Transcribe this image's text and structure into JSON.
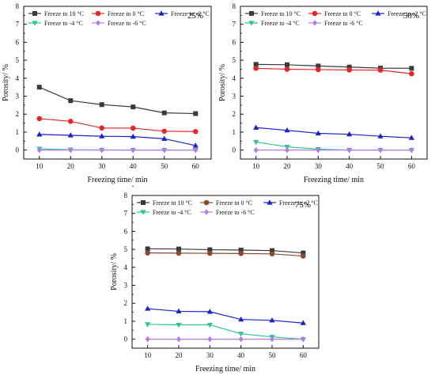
{
  "chart_data": [
    {
      "type": "line",
      "annotation": "25%",
      "xlabel": "Freezing time/ min",
      "ylabel": "Porosity/ %",
      "x": [
        10,
        20,
        30,
        40,
        50,
        60
      ],
      "xticks": [
        "10",
        "20",
        "30",
        "40",
        "50",
        "60"
      ],
      "yticks": [
        "0",
        "1",
        "2",
        "3",
        "4",
        "5",
        "6",
        "7",
        "8"
      ],
      "xlim": [
        5,
        65
      ],
      "ylim": [
        -0.5,
        8
      ],
      "series": [
        {
          "name": "Freeze to 10 °C",
          "marker": "square",
          "color": "#3a3a3a",
          "values": [
            3.5,
            2.75,
            2.53,
            2.4,
            2.07,
            2.03
          ]
        },
        {
          "name": "Freeze to 0 °C",
          "marker": "circle",
          "color": "#e8262a",
          "values": [
            1.75,
            1.6,
            1.23,
            1.22,
            1.05,
            1.03
          ]
        },
        {
          "name": "Freeze to -2 °C",
          "marker": "triangle-up",
          "color": "#1a22c8",
          "values": [
            0.87,
            0.82,
            0.77,
            0.75,
            0.63,
            0.25
          ]
        },
        {
          "name": "Freeze to -4 °C",
          "marker": "triangle-down",
          "color": "#2ec68c",
          "values": [
            0.07,
            0.02,
            0.01,
            0.0,
            0.0,
            0.0
          ]
        },
        {
          "name": "Freeze to -6 °C",
          "marker": "diamond",
          "color": "#b67be8",
          "values": [
            0.0,
            0.0,
            0.0,
            0.0,
            0.0,
            0.0
          ]
        }
      ]
    },
    {
      "type": "line",
      "annotation": "50%",
      "xlabel": "Freezing time/ min",
      "ylabel": "Porosity/ %",
      "x": [
        10,
        20,
        30,
        40,
        50,
        60
      ],
      "xticks": [
        "10",
        "20",
        "30",
        "40",
        "50",
        "60"
      ],
      "yticks": [
        "0",
        "1",
        "2",
        "3",
        "4",
        "5",
        "6",
        "7",
        "8"
      ],
      "xlim": [
        5,
        65
      ],
      "ylim": [
        -0.5,
        8
      ],
      "series": [
        {
          "name": "Freeze to 10 °C",
          "marker": "square",
          "color": "#3a3a3a",
          "values": [
            4.77,
            4.75,
            4.68,
            4.62,
            4.56,
            4.55
          ]
        },
        {
          "name": "Freeze to 0 °C",
          "marker": "circle",
          "color": "#e8262a",
          "values": [
            4.55,
            4.5,
            4.48,
            4.46,
            4.45,
            4.25
          ]
        },
        {
          "name": "Freeze to -2 °C",
          "marker": "triangle-up",
          "color": "#1a22c8",
          "values": [
            1.25,
            1.1,
            0.93,
            0.88,
            0.77,
            0.68
          ]
        },
        {
          "name": "Freeze to -4 °C",
          "marker": "triangle-down",
          "color": "#2ec68c",
          "values": [
            0.45,
            0.18,
            0.05,
            0.0,
            0.0,
            0.0
          ]
        },
        {
          "name": "Freeze to -6 °C",
          "marker": "diamond",
          "color": "#b67be8",
          "values": [
            0.0,
            0.0,
            0.0,
            0.0,
            0.0,
            0.0
          ]
        }
      ]
    },
    {
      "type": "line",
      "annotation": "75%",
      "xlabel": "Freezing time/ min",
      "ylabel": "Porosity/ %",
      "x": [
        10,
        20,
        30,
        40,
        50,
        60
      ],
      "xticks": [
        "10",
        "20",
        "30",
        "40",
        "50",
        "60"
      ],
      "yticks": [
        "0",
        "1",
        "2",
        "3",
        "4",
        "5",
        "6",
        "7",
        "8"
      ],
      "xlim": [
        5,
        65
      ],
      "ylim": [
        -0.5,
        8
      ],
      "series": [
        {
          "name": "Freeze to 10 °C",
          "marker": "square",
          "color": "#3a3a3a",
          "values": [
            5.03,
            5.02,
            4.98,
            4.96,
            4.93,
            4.8
          ]
        },
        {
          "name": "Freeze to 0 °C",
          "marker": "circle",
          "color": "#8b4a2f",
          "values": [
            4.8,
            4.79,
            4.78,
            4.77,
            4.75,
            4.63
          ]
        },
        {
          "name": "Freeze to -2 °C",
          "marker": "triangle-up",
          "color": "#1a22c8",
          "values": [
            1.7,
            1.55,
            1.53,
            1.1,
            1.05,
            0.9
          ]
        },
        {
          "name": "Freeze to -4 °C",
          "marker": "triangle-down",
          "color": "#2ec68c",
          "values": [
            0.83,
            0.8,
            0.8,
            0.3,
            0.13,
            0.0
          ]
        },
        {
          "name": "Freeze to -6 °C",
          "marker": "diamond",
          "color": "#b67be8",
          "values": [
            0.0,
            0.0,
            0.0,
            0.0,
            0.0,
            0.0
          ]
        }
      ]
    }
  ]
}
